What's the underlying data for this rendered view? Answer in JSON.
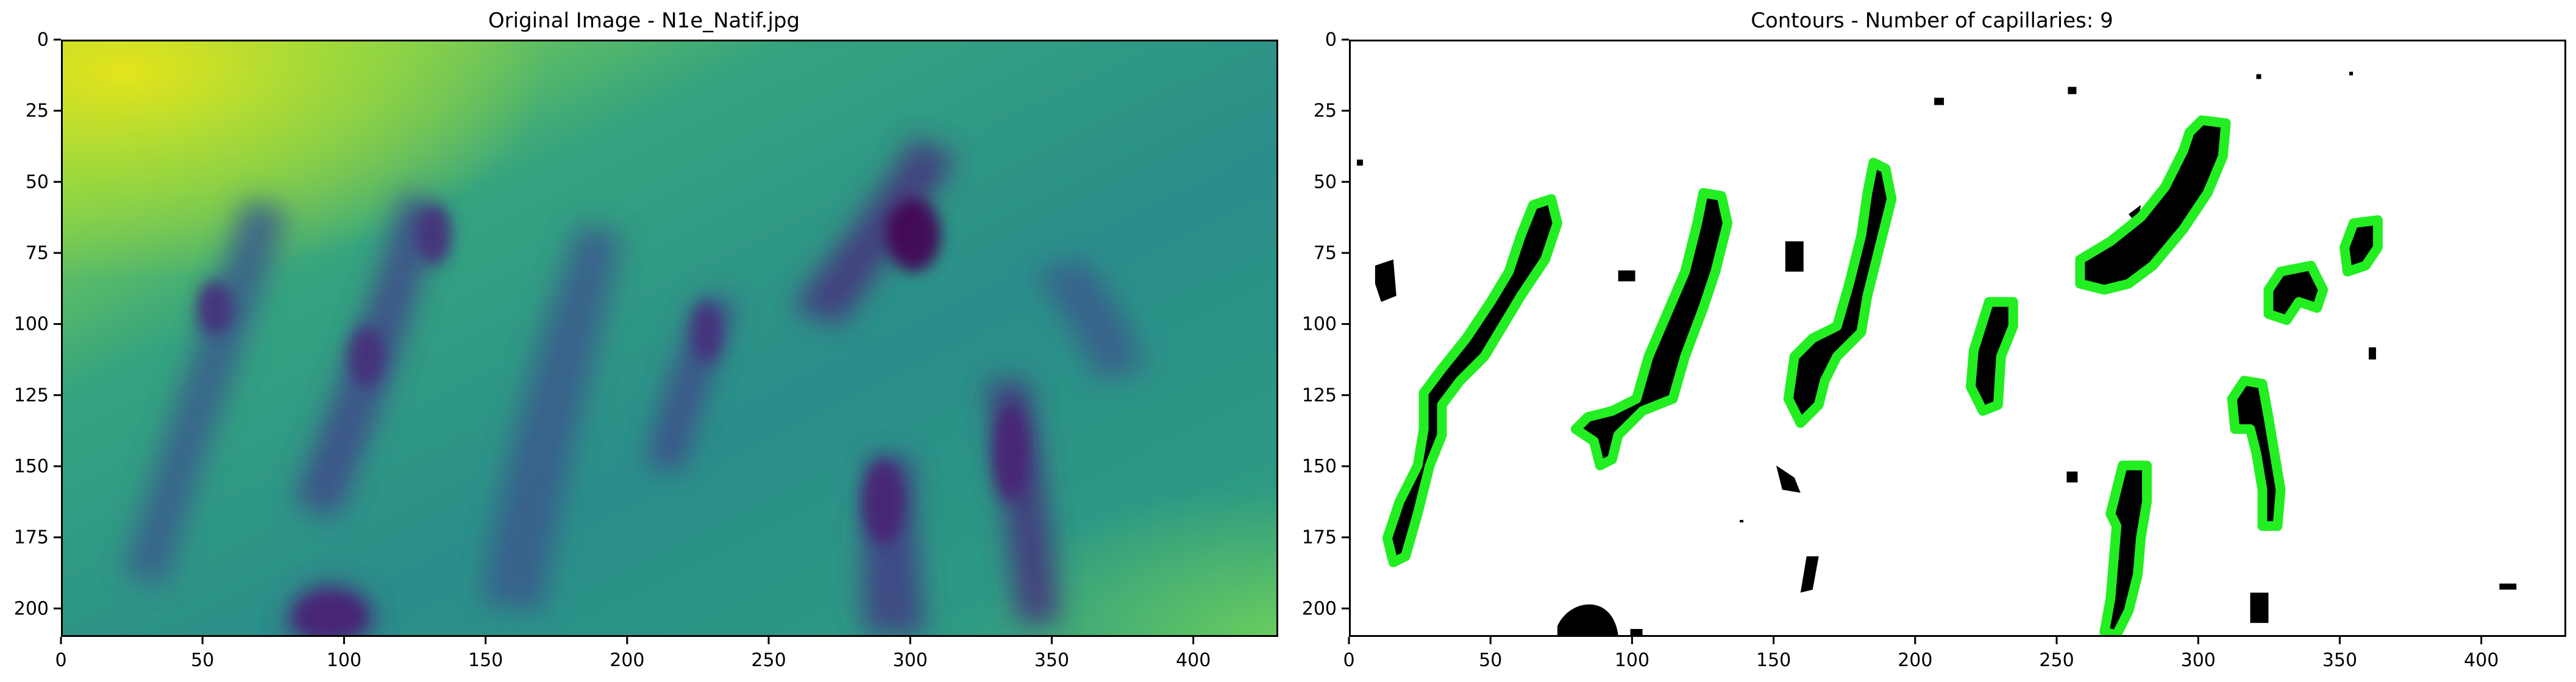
{
  "left": {
    "title": "Original Image - N1e_Natif.jpg",
    "x_ticks": [
      "0",
      "50",
      "100",
      "150",
      "200",
      "250",
      "300",
      "350",
      "400"
    ],
    "y_ticks": [
      "0",
      "25",
      "50",
      "75",
      "100",
      "125",
      "150",
      "175",
      "200"
    ],
    "colormap": "viridis",
    "colors": {
      "dark": "#46327e",
      "mid": "#2a8e8a",
      "light": "#5ec962",
      "yellow": "#d5e21a"
    }
  },
  "right": {
    "title": "Contours - Number of capillaries: 9",
    "x_ticks": [
      "0",
      "50",
      "100",
      "150",
      "200",
      "250",
      "300",
      "350",
      "400"
    ],
    "y_ticks": [
      "0",
      "25",
      "50",
      "75",
      "100",
      "125",
      "150",
      "175",
      "200"
    ],
    "colors": {
      "contour": "#22ee22",
      "blob": "#000000",
      "background": "#ffffff"
    }
  }
}
